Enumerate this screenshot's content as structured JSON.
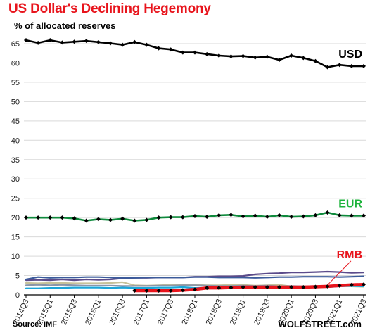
{
  "title": "US Dollar's  Declining Hegemony",
  "subtitle": "% of allocated reserves",
  "source": "Source: IMF",
  "brand": "WOLFSTREET.com",
  "chart_data": {
    "type": "line",
    "ylim": [
      0,
      65
    ],
    "yticks": [
      0,
      5,
      10,
      15,
      20,
      25,
      30,
      35,
      40,
      45,
      50,
      55,
      60,
      65
    ],
    "grid": true,
    "quarters": [
      "2014Q3",
      "2014Q4",
      "2015Q1",
      "2015Q2",
      "2015Q3",
      "2015Q4",
      "2016Q1",
      "2016Q2",
      "2016Q3",
      "2016Q4",
      "2017Q1",
      "2017Q2",
      "2017Q3",
      "2017Q4",
      "2018Q1",
      "2018Q2",
      "2018Q3",
      "2018Q4",
      "2019Q1",
      "2019Q2",
      "2019Q3",
      "2019Q4",
      "2020Q1",
      "2020Q2",
      "2020Q3",
      "2020Q4",
      "2021Q1",
      "2021Q2",
      "2021Q3"
    ],
    "x_tick_labels": [
      "2014Q3",
      "2015Q1",
      "2015Q3",
      "2016Q1",
      "2016Q3",
      "2017Q1",
      "2017Q3",
      "2018Q1",
      "2018Q3",
      "2019Q1",
      "2019Q3",
      "2020Q1",
      "2020Q3",
      "2021Q1",
      "2021Q3"
    ],
    "series": [
      {
        "name": "USD",
        "color": "#000000",
        "label_color": "#000000",
        "marker": "diamond",
        "values": [
          65.9,
          65.2,
          65.9,
          65.3,
          65.5,
          65.7,
          65.4,
          65.1,
          64.7,
          65.4,
          64.7,
          63.8,
          63.5,
          62.7,
          62.7,
          62.3,
          61.9,
          61.7,
          61.8,
          61.4,
          61.6,
          60.8,
          61.9,
          61.3,
          60.5,
          58.9,
          59.5,
          59.2,
          59.2
        ]
      },
      {
        "name": "EUR",
        "color": "#0f8a3c",
        "label_color": "#1db33b",
        "marker": "diamond",
        "values": [
          20.0,
          20.0,
          20.0,
          20.0,
          19.8,
          19.2,
          19.6,
          19.4,
          19.7,
          19.2,
          19.4,
          20.0,
          20.1,
          20.1,
          20.4,
          20.2,
          20.6,
          20.7,
          20.3,
          20.5,
          20.2,
          20.6,
          20.2,
          20.3,
          20.6,
          21.3,
          20.6,
          20.5,
          20.5
        ]
      },
      {
        "name": "RMB",
        "color": "#e8141c",
        "label_color": "#e8141c",
        "marker": "diamond",
        "width": 4.5,
        "values": [
          null,
          null,
          null,
          null,
          null,
          null,
          null,
          null,
          null,
          1.1,
          1.1,
          1.1,
          1.1,
          1.2,
          1.4,
          1.8,
          1.8,
          1.9,
          2.0,
          2.0,
          2.0,
          2.0,
          2.0,
          2.0,
          2.1,
          2.2,
          2.4,
          2.6,
          2.7
        ]
      },
      {
        "color": "#5b4b8a",
        "values": [
          3.8,
          3.9,
          3.8,
          4.0,
          3.8,
          4.0,
          3.9,
          4.0,
          4.3,
          4.4,
          4.4,
          4.5,
          4.5,
          4.5,
          4.7,
          4.7,
          4.8,
          4.8,
          4.9,
          5.3,
          5.5,
          5.6,
          5.8,
          5.8,
          5.9,
          6.0,
          5.9,
          5.7,
          5.8
        ]
      },
      {
        "color": "#3b5b9b",
        "values": [
          4.0,
          4.6,
          4.4,
          4.5,
          4.5,
          4.6,
          4.6,
          4.5,
          4.4,
          4.4,
          4.5,
          4.5,
          4.5,
          4.5,
          4.6,
          4.6,
          4.5,
          4.5,
          4.5,
          4.4,
          4.5,
          4.6,
          4.6,
          4.7,
          4.7,
          4.7,
          4.6,
          4.7,
          4.8
        ]
      },
      {
        "color": "#c6c29a",
        "values": [
          3.1,
          3.0,
          3.1,
          3.1,
          3.0,
          3.0,
          3.0,
          3.1,
          3.3,
          2.5,
          2.4,
          2.5,
          2.6,
          2.7,
          2.6,
          2.5,
          2.5,
          2.6,
          2.6,
          2.4,
          2.5,
          2.6,
          2.2,
          2.2,
          2.2,
          2.3,
          2.3,
          2.2,
          2.1
        ]
      },
      {
        "color": "#8a95a8",
        "values": [
          2.5,
          2.6,
          2.5,
          2.6,
          2.5,
          2.4,
          2.4,
          2.4,
          2.3,
          2.3,
          2.3,
          2.4,
          2.4,
          2.5,
          2.5,
          2.4,
          2.3,
          2.3,
          2.4,
          2.3,
          2.4,
          2.2,
          2.3,
          2.2,
          2.3,
          2.3,
          2.3,
          2.4,
          2.4
        ]
      },
      {
        "color": "#1aa5d8",
        "values": [
          1.7,
          1.7,
          1.8,
          1.8,
          1.9,
          1.9,
          1.9,
          1.8,
          1.9,
          1.8,
          1.8,
          1.9,
          1.9,
          2.0,
          1.8,
          1.9,
          1.9,
          1.7,
          1.9,
          1.9,
          1.9,
          1.9,
          1.9,
          2.1,
          2.0,
          2.0,
          2.2,
          2.3,
          2.2
        ]
      }
    ]
  }
}
